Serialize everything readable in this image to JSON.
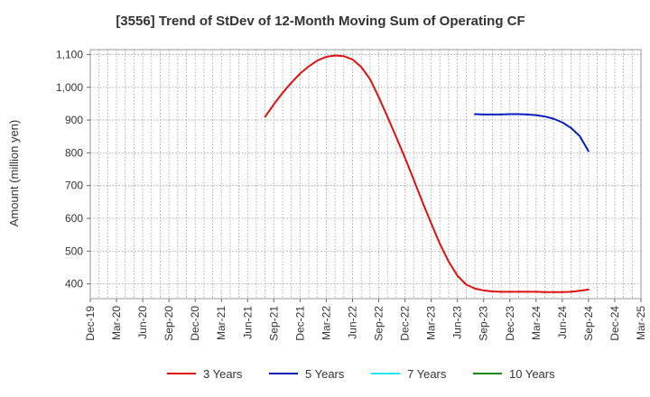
{
  "chart_data": {
    "type": "line",
    "title": "[3556]  Trend of StDev of 12-Month Moving Sum of Operating CF",
    "ylabel": "Amount (million yen)",
    "xlabel": "",
    "ylim": [
      355,
      1115
    ],
    "yticks": [
      400,
      500,
      600,
      700,
      800,
      900,
      1000,
      1100
    ],
    "ytick_labels": [
      "400",
      "500",
      "600",
      "700",
      "800",
      "900",
      "1,000",
      "1,100"
    ],
    "x_categories": [
      "Dec-19",
      "Mar-20",
      "Jun-20",
      "Sep-20",
      "Dec-20",
      "Mar-21",
      "Jun-21",
      "Sep-21",
      "Dec-21",
      "Mar-22",
      "Jun-22",
      "Sep-22",
      "Dec-22",
      "Mar-23",
      "Jun-23",
      "Sep-23",
      "Dec-23",
      "Mar-24",
      "Jun-24",
      "Sep-24",
      "Dec-24",
      "Mar-25"
    ],
    "grid": true,
    "legend_position": "bottom",
    "series": [
      {
        "name": "3 Years",
        "color": "#dd1111",
        "points": [
          {
            "x": "Aug-21",
            "y": 910
          },
          {
            "x": "Sep-21",
            "y": 948
          },
          {
            "x": "Oct-21",
            "y": 983
          },
          {
            "x": "Nov-21",
            "y": 1014
          },
          {
            "x": "Dec-21",
            "y": 1042
          },
          {
            "x": "Jan-22",
            "y": 1064
          },
          {
            "x": "Feb-22",
            "y": 1082
          },
          {
            "x": "Mar-22",
            "y": 1093
          },
          {
            "x": "Apr-22",
            "y": 1097
          },
          {
            "x": "May-22",
            "y": 1095
          },
          {
            "x": "Jun-22",
            "y": 1085
          },
          {
            "x": "Jul-22",
            "y": 1062
          },
          {
            "x": "Aug-22",
            "y": 1025
          },
          {
            "x": "Sep-22",
            "y": 970
          },
          {
            "x": "Oct-22",
            "y": 910
          },
          {
            "x": "Nov-22",
            "y": 848
          },
          {
            "x": "Dec-22",
            "y": 785
          },
          {
            "x": "Jan-23",
            "y": 718
          },
          {
            "x": "Feb-23",
            "y": 650
          },
          {
            "x": "Mar-23",
            "y": 585
          },
          {
            "x": "Apr-23",
            "y": 522
          },
          {
            "x": "May-23",
            "y": 468
          },
          {
            "x": "Jun-23",
            "y": 425
          },
          {
            "x": "Jul-23",
            "y": 398
          },
          {
            "x": "Aug-23",
            "y": 386
          },
          {
            "x": "Sep-23",
            "y": 380
          },
          {
            "x": "Oct-23",
            "y": 377
          },
          {
            "x": "Nov-23",
            "y": 376
          },
          {
            "x": "Dec-23",
            "y": 376
          },
          {
            "x": "Jan-24",
            "y": 376
          },
          {
            "x": "Feb-24",
            "y": 376
          },
          {
            "x": "Mar-24",
            "y": 376
          },
          {
            "x": "Apr-24",
            "y": 375
          },
          {
            "x": "May-24",
            "y": 375
          },
          {
            "x": "Jun-24",
            "y": 375
          },
          {
            "x": "Jul-24",
            "y": 376
          },
          {
            "x": "Aug-24",
            "y": 379
          },
          {
            "x": "Sep-24",
            "y": 383
          }
        ]
      },
      {
        "name": "5 Years",
        "color": "#0a1ebe",
        "points": [
          {
            "x": "Aug-23",
            "y": 918
          },
          {
            "x": "Sep-23",
            "y": 917
          },
          {
            "x": "Oct-23",
            "y": 917
          },
          {
            "x": "Nov-23",
            "y": 917
          },
          {
            "x": "Dec-23",
            "y": 918
          },
          {
            "x": "Jan-24",
            "y": 918
          },
          {
            "x": "Feb-24",
            "y": 917
          },
          {
            "x": "Mar-24",
            "y": 915
          },
          {
            "x": "Apr-24",
            "y": 911
          },
          {
            "x": "May-24",
            "y": 904
          },
          {
            "x": "Jun-24",
            "y": 893
          },
          {
            "x": "Jul-24",
            "y": 876
          },
          {
            "x": "Aug-24",
            "y": 851
          },
          {
            "x": "Sep-24",
            "y": 805
          }
        ]
      },
      {
        "name": "7 Years",
        "color": "#22e6f0",
        "points": []
      },
      {
        "name": "10 Years",
        "color": "#1a8a1a",
        "points": []
      }
    ]
  }
}
